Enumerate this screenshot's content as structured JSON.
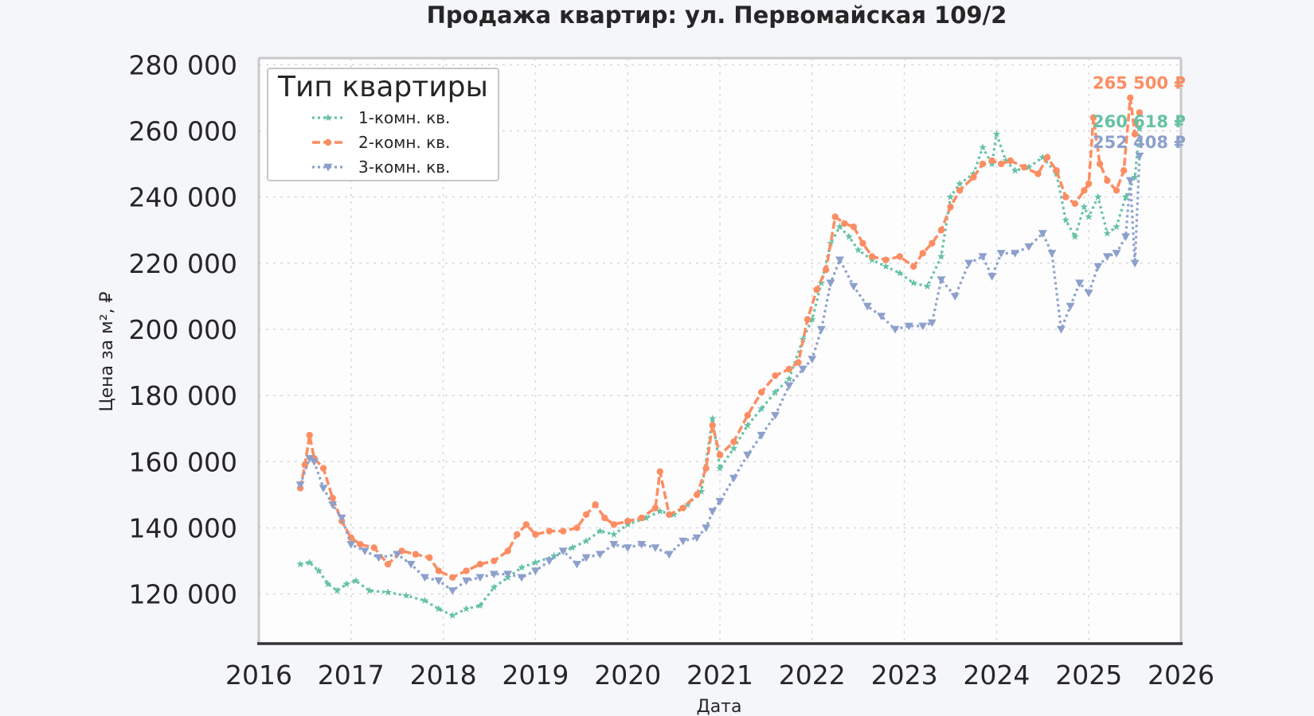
{
  "chart_data": {
    "type": "line",
    "title": "Продажа квартир: ул. Первомайская 109/2",
    "xlabel": "Дата",
    "ylabel": "Цена за м², ₽",
    "x_unit": "year",
    "xlim": [
      2016,
      2026
    ],
    "ylim": [
      105000,
      282000
    ],
    "x_ticks": [
      2016,
      2017,
      2018,
      2019,
      2020,
      2021,
      2022,
      2023,
      2024,
      2025,
      2026
    ],
    "x_tick_labels": [
      "2016",
      "2017",
      "2018",
      "2019",
      "2020",
      "2021",
      "2022",
      "2023",
      "2024",
      "2025",
      "2026"
    ],
    "y_ticks": [
      120000,
      140000,
      160000,
      180000,
      200000,
      220000,
      240000,
      260000,
      280000
    ],
    "y_tick_labels": [
      "120 000",
      "140 000",
      "160 000",
      "180 000",
      "200 000",
      "220 000",
      "240 000",
      "260 000",
      "280 000"
    ],
    "grid": true,
    "legend": {
      "title": "Тип квартиры",
      "position": "top-left"
    },
    "series": [
      {
        "name": "1-комн. кв.",
        "color": "#66c2a5",
        "line_style": "dotted",
        "marker": "star",
        "end_label": "260 618 ₽",
        "x": [
          2016.45,
          2016.55,
          2016.65,
          2016.75,
          2016.85,
          2016.95,
          2017.05,
          2017.2,
          2017.4,
          2017.6,
          2017.8,
          2017.95,
          2018.1,
          2018.25,
          2018.4,
          2018.55,
          2018.7,
          2018.85,
          2019.0,
          2019.2,
          2019.4,
          2019.55,
          2019.7,
          2019.85,
          2020.0,
          2020.2,
          2020.35,
          2020.5,
          2020.65,
          2020.8,
          2020.92,
          2021.0,
          2021.15,
          2021.3,
          2021.45,
          2021.6,
          2021.75,
          2021.9,
          2022.0,
          2022.1,
          2022.2,
          2022.3,
          2022.4,
          2022.5,
          2022.65,
          2022.8,
          2022.95,
          2023.1,
          2023.25,
          2023.4,
          2023.5,
          2023.6,
          2023.75,
          2023.85,
          2023.95,
          2024.0,
          2024.1,
          2024.2,
          2024.35,
          2024.5,
          2024.65,
          2024.75,
          2024.85,
          2024.95,
          2025.0,
          2025.1,
          2025.2,
          2025.3,
          2025.4,
          2025.5,
          2025.55
        ],
        "values": [
          129000,
          129500,
          127000,
          123000,
          121000,
          123000,
          124000,
          121000,
          120500,
          119500,
          118000,
          115500,
          113500,
          115500,
          116500,
          122000,
          125000,
          128000,
          129500,
          131500,
          134000,
          136000,
          139000,
          138000,
          141000,
          143000,
          145000,
          144000,
          147000,
          151000,
          173000,
          158000,
          164000,
          171000,
          176000,
          181000,
          185000,
          197000,
          203000,
          214000,
          226000,
          231000,
          228000,
          224000,
          221000,
          219000,
          217000,
          214000,
          213000,
          222000,
          240000,
          244000,
          247000,
          255000,
          250000,
          259000,
          251000,
          248000,
          249000,
          252000,
          247000,
          233000,
          228000,
          237000,
          234000,
          240000,
          229000,
          231000,
          240000,
          246000,
          260618
        ]
      },
      {
        "name": "2-комн. кв.",
        "color": "#fc8d62",
        "line_style": "dashed",
        "marker": "circle",
        "end_label": "265 500 ₽",
        "x": [
          2016.45,
          2016.5,
          2016.55,
          2016.6,
          2016.7,
          2016.8,
          2016.9,
          2017.0,
          2017.1,
          2017.25,
          2017.4,
          2017.55,
          2017.7,
          2017.85,
          2017.95,
          2018.1,
          2018.25,
          2018.4,
          2018.55,
          2018.7,
          2018.8,
          2018.9,
          2019.0,
          2019.15,
          2019.3,
          2019.45,
          2019.55,
          2019.65,
          2019.75,
          2019.85,
          2020.0,
          2020.15,
          2020.3,
          2020.35,
          2020.45,
          2020.6,
          2020.75,
          2020.85,
          2020.92,
          2021.0,
          2021.15,
          2021.3,
          2021.45,
          2021.6,
          2021.75,
          2021.85,
          2021.95,
          2022.05,
          2022.15,
          2022.25,
          2022.35,
          2022.45,
          2022.55,
          2022.65,
          2022.8,
          2022.95,
          2023.1,
          2023.2,
          2023.3,
          2023.4,
          2023.5,
          2023.6,
          2023.75,
          2023.85,
          2023.95,
          2024.05,
          2024.15,
          2024.3,
          2024.45,
          2024.55,
          2024.65,
          2024.75,
          2024.85,
          2024.95,
          2025.0,
          2025.05,
          2025.12,
          2025.2,
          2025.3,
          2025.38,
          2025.45,
          2025.5,
          2025.55
        ],
        "values": [
          152000,
          159000,
          168000,
          161000,
          158000,
          149000,
          142000,
          137000,
          135000,
          134000,
          129000,
          133000,
          132000,
          131000,
          127000,
          125000,
          127000,
          129000,
          130000,
          133000,
          138000,
          141000,
          138000,
          139000,
          139000,
          140000,
          144000,
          147000,
          143000,
          141000,
          142000,
          143000,
          146000,
          157000,
          144000,
          146000,
          150000,
          158000,
          171000,
          162000,
          166000,
          174000,
          181000,
          186000,
          188000,
          190000,
          203000,
          212000,
          218000,
          234000,
          232000,
          231000,
          226000,
          222000,
          221000,
          222000,
          219000,
          223000,
          226000,
          230000,
          237000,
          242000,
          246000,
          250000,
          251000,
          250000,
          251000,
          249000,
          247000,
          252000,
          248000,
          240000,
          238000,
          242000,
          244000,
          264000,
          250000,
          245000,
          242000,
          248000,
          270000,
          259000,
          265500
        ]
      },
      {
        "name": "3-комн. кв.",
        "color": "#8da0cb",
        "line_style": "dotted",
        "marker": "triangle-down",
        "end_label": "252 408 ₽",
        "x": [
          2016.45,
          2016.55,
          2016.6,
          2016.7,
          2016.8,
          2016.9,
          2017.0,
          2017.15,
          2017.3,
          2017.5,
          2017.65,
          2017.8,
          2017.95,
          2018.1,
          2018.25,
          2018.4,
          2018.55,
          2018.7,
          2018.85,
          2019.0,
          2019.15,
          2019.3,
          2019.45,
          2019.55,
          2019.7,
          2019.85,
          2020.0,
          2020.15,
          2020.3,
          2020.45,
          2020.6,
          2020.75,
          2020.85,
          2020.92,
          2021.0,
          2021.15,
          2021.3,
          2021.45,
          2021.6,
          2021.75,
          2021.9,
          2022.0,
          2022.1,
          2022.2,
          2022.3,
          2022.45,
          2022.6,
          2022.75,
          2022.9,
          2023.05,
          2023.2,
          2023.3,
          2023.4,
          2023.55,
          2023.7,
          2023.85,
          2023.95,
          2024.05,
          2024.2,
          2024.35,
          2024.5,
          2024.6,
          2024.7,
          2024.8,
          2024.9,
          2025.0,
          2025.1,
          2025.2,
          2025.3,
          2025.4,
          2025.45,
          2025.5,
          2025.55
        ],
        "values": [
          153000,
          161000,
          160000,
          152000,
          147000,
          143000,
          135000,
          133000,
          131000,
          132000,
          129000,
          125000,
          124000,
          121000,
          124000,
          125000,
          126000,
          126000,
          125000,
          127000,
          130000,
          133000,
          129000,
          131000,
          132000,
          135000,
          134000,
          135000,
          134000,
          132000,
          136000,
          137000,
          140000,
          145000,
          148000,
          155000,
          162000,
          168000,
          174000,
          183000,
          188000,
          191000,
          200000,
          214000,
          221000,
          213000,
          207000,
          204000,
          200000,
          201000,
          201000,
          202000,
          215000,
          210000,
          220000,
          222000,
          216000,
          223000,
          223000,
          225000,
          229000,
          223000,
          200000,
          207000,
          214000,
          211000,
          219000,
          222000,
          223000,
          228000,
          245000,
          220000,
          252408
        ]
      }
    ]
  }
}
